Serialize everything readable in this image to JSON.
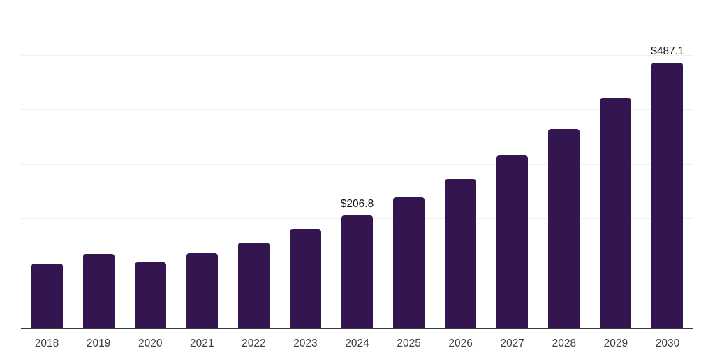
{
  "chart_data": {
    "type": "bar",
    "title": "",
    "xlabel": "",
    "ylabel": "",
    "categories": [
      "2018",
      "2019",
      "2020",
      "2021",
      "2022",
      "2023",
      "2024",
      "2025",
      "2026",
      "2027",
      "2028",
      "2029",
      "2030"
    ],
    "values": [
      118.0,
      136.0,
      120.5,
      137.2,
      156.4,
      180.9,
      206.8,
      239.8,
      273.1,
      316.7,
      365.4,
      421.8,
      487.1
    ],
    "value_labels": [
      {
        "category": "2024",
        "text": "$206.8"
      },
      {
        "category": "2030",
        "text": "$487.1"
      }
    ],
    "ylim": [
      0,
      600
    ],
    "gridline_step": 100,
    "grid": true,
    "legend": false,
    "y_tick_labels_visible": false,
    "colors": {
      "bar": "#331550",
      "axis": "#3a3a3a",
      "grid": "#f0f0f0",
      "tick_label": "#3d3d3d",
      "value_label": "#111111",
      "background": "#ffffff"
    }
  }
}
